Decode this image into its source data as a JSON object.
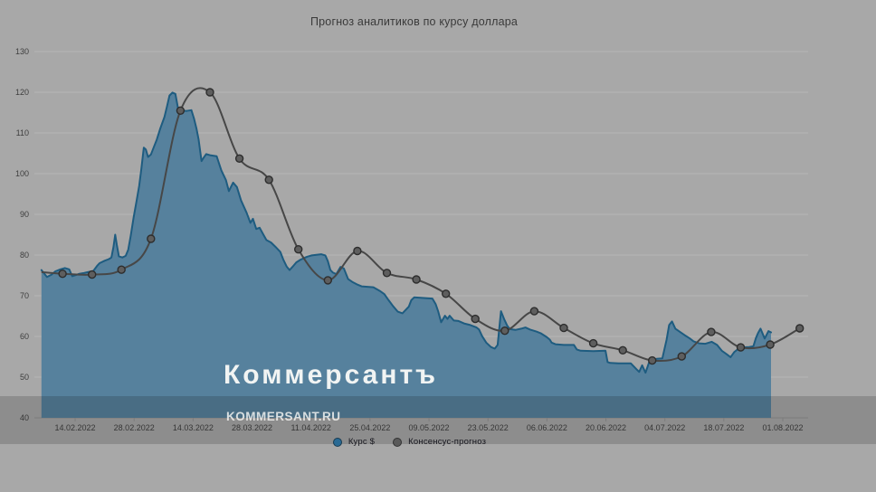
{
  "title": "Прогноз аналитиков по курсу доллара",
  "watermark": {
    "main": "Коммерсантъ",
    "sub": "KOMMERSANT.RU"
  },
  "legend": {
    "items": [
      {
        "label": "Курс $",
        "color": "#2a6a94"
      },
      {
        "label": "Консенсус-прогноз",
        "color": "#5a5a5a"
      }
    ]
  },
  "colors": {
    "background": "#a8a8a8",
    "dark_band": "rgba(15,15,15,0.175)",
    "watermark": "#faf8f6"
  },
  "chart_data": {
    "type": "area",
    "title": "Прогноз аналитиков по курсу доллара",
    "x_unit": "day index, 0 ≈ 06.02.2022, 1 unit = 1 day",
    "xlim": [
      0,
      182
    ],
    "ylim": [
      40,
      130
    ],
    "grid": true,
    "legend_position": "bottom",
    "grid_color": "#b6b6b6",
    "axis_line_color": "#949494",
    "tick_text_color": "#3e3e3e",
    "y_ticks": [
      130,
      120,
      110,
      100,
      90,
      80,
      70,
      60,
      50,
      40
    ],
    "x_tick_labels": [
      {
        "d": 8,
        "label": "14.02.2022"
      },
      {
        "d": 22,
        "label": "28.02.2022"
      },
      {
        "d": 36,
        "label": "14.03.2022"
      },
      {
        "d": 50,
        "label": "28.03.2022"
      },
      {
        "d": 64,
        "label": "11.04.2022"
      },
      {
        "d": 78,
        "label": "25.04.2022"
      },
      {
        "d": 92,
        "label": "09.05.2022"
      },
      {
        "d": 106,
        "label": "23.05.2022"
      },
      {
        "d": 120,
        "label": "06.06.2022"
      },
      {
        "d": 134,
        "label": "20.06.2022"
      },
      {
        "d": 148,
        "label": "04.07.2022"
      },
      {
        "d": 162,
        "label": "18.07.2022"
      },
      {
        "d": 176,
        "label": "01.08.2022"
      }
    ],
    "series": [
      {
        "name": "Курс $",
        "type": "area",
        "line_color": "#1e5c80",
        "fill_color": "#56819d",
        "points": [
          [
            0,
            76.3
          ],
          [
            1.3,
            74.6
          ],
          [
            2.4,
            75.2
          ],
          [
            3.3,
            76.0
          ],
          [
            4.5,
            76.5
          ],
          [
            5.6,
            76.8
          ],
          [
            6.6,
            76.5
          ],
          [
            7.3,
            74.8
          ],
          [
            8.2,
            75.1
          ],
          [
            9,
            75.4
          ],
          [
            10.1,
            75.6
          ],
          [
            11,
            75.8
          ],
          [
            12.3,
            76.1
          ],
          [
            13.2,
            77.3
          ],
          [
            13.8,
            78.0
          ],
          [
            15,
            78.6
          ],
          [
            16,
            79.0
          ],
          [
            16.6,
            79.4
          ],
          [
            17.1,
            82.0
          ],
          [
            17.5,
            85.0
          ],
          [
            17.9,
            82.5
          ],
          [
            18.4,
            79.7
          ],
          [
            19.2,
            79.4
          ],
          [
            20,
            79.8
          ],
          [
            20.6,
            81.3
          ],
          [
            21.2,
            84.8
          ],
          [
            21.9,
            89.3
          ],
          [
            22.6,
            93.4
          ],
          [
            23.2,
            97.0
          ],
          [
            23.7,
            101.0
          ],
          [
            24.3,
            106.4
          ],
          [
            24.8,
            105.9
          ],
          [
            25.3,
            104.1
          ],
          [
            26,
            104.7
          ],
          [
            26.7,
            106.6
          ],
          [
            27.4,
            108.4
          ],
          [
            28.2,
            111.1
          ],
          [
            29.2,
            113.9
          ],
          [
            29.8,
            116.5
          ],
          [
            30.4,
            119.2
          ],
          [
            31.1,
            119.9
          ],
          [
            31.8,
            119.6
          ],
          [
            32.4,
            116.2
          ],
          [
            33,
            115.6
          ],
          [
            34.4,
            115.4
          ],
          [
            35.6,
            115.6
          ],
          [
            36.2,
            113.6
          ],
          [
            36.8,
            111.1
          ],
          [
            37.3,
            108.5
          ],
          [
            38,
            103.1
          ],
          [
            38.5,
            103.9
          ],
          [
            39.1,
            104.8
          ],
          [
            40.2,
            104.5
          ],
          [
            41.6,
            104.3
          ],
          [
            42.7,
            100.8
          ],
          [
            43.8,
            98.4
          ],
          [
            44.5,
            95.7
          ],
          [
            45.5,
            97.8
          ],
          [
            46.4,
            96.7
          ],
          [
            47.4,
            93.4
          ],
          [
            48.7,
            90.4
          ],
          [
            49.6,
            87.9
          ],
          [
            50.2,
            88.9
          ],
          [
            51,
            86.4
          ],
          [
            51.8,
            86.7
          ],
          [
            52.6,
            85.2
          ],
          [
            53.4,
            83.7
          ],
          [
            54.5,
            83.1
          ],
          [
            55.5,
            82.1
          ],
          [
            56.7,
            80.8
          ],
          [
            57.4,
            78.9
          ],
          [
            58.2,
            77.2
          ],
          [
            58.9,
            76.3
          ],
          [
            59.6,
            77.1
          ],
          [
            60.5,
            78.2
          ],
          [
            61.6,
            78.9
          ],
          [
            63.1,
            79.6
          ],
          [
            64.2,
            79.9
          ],
          [
            65.5,
            80.1
          ],
          [
            66.4,
            80.2
          ],
          [
            67.4,
            79.9
          ],
          [
            68,
            78.5
          ],
          [
            68.6,
            76.3
          ],
          [
            69.2,
            75.7
          ],
          [
            70,
            75.3
          ],
          [
            71,
            77.1
          ],
          [
            71.8,
            76.7
          ],
          [
            72.8,
            74.1
          ],
          [
            73.8,
            73.4
          ],
          [
            74.9,
            72.8
          ],
          [
            76,
            72.3
          ],
          [
            78.8,
            72.1
          ],
          [
            80.3,
            71.2
          ],
          [
            81.4,
            70.4
          ],
          [
            82.4,
            68.9
          ],
          [
            83.5,
            67.4
          ],
          [
            84.6,
            66.1
          ],
          [
            85.7,
            65.7
          ],
          [
            87.2,
            67.3
          ],
          [
            87.8,
            68.9
          ],
          [
            88.5,
            69.6
          ],
          [
            90,
            69.5
          ],
          [
            91.5,
            69.4
          ],
          [
            92.8,
            69.3
          ],
          [
            93.6,
            67.9
          ],
          [
            94.2,
            66.1
          ],
          [
            94.9,
            63.5
          ],
          [
            95.8,
            65.1
          ],
          [
            96.4,
            64.3
          ],
          [
            96.9,
            65.1
          ],
          [
            97.9,
            63.9
          ],
          [
            99,
            63.8
          ],
          [
            100.3,
            63.2
          ],
          [
            101.8,
            62.8
          ],
          [
            103.3,
            62.2
          ],
          [
            103.9,
            61.7
          ],
          [
            104.6,
            60.1
          ],
          [
            105.6,
            58.5
          ],
          [
            106.7,
            57.4
          ],
          [
            107.6,
            57.0
          ],
          [
            108.3,
            57.9
          ],
          [
            109.1,
            66.2
          ],
          [
            109.9,
            64.1
          ],
          [
            110.6,
            62.6
          ],
          [
            111.2,
            61.8
          ],
          [
            112.5,
            61.6
          ],
          [
            113.9,
            61.9
          ],
          [
            114.9,
            62.2
          ],
          [
            116,
            61.7
          ],
          [
            117.5,
            61.2
          ],
          [
            118.5,
            60.8
          ],
          [
            120,
            59.8
          ],
          [
            120.7,
            59.2
          ],
          [
            121.1,
            58.5
          ],
          [
            122,
            58.1
          ],
          [
            124,
            57.9
          ],
          [
            126.4,
            57.9
          ],
          [
            127.1,
            56.8
          ],
          [
            128,
            56.5
          ],
          [
            131,
            56.4
          ],
          [
            133.9,
            56.5
          ],
          [
            134.4,
            53.7
          ],
          [
            135,
            53.5
          ],
          [
            137,
            53.4
          ],
          [
            139.9,
            53.4
          ],
          [
            141.3,
            51.9
          ],
          [
            141.9,
            51.3
          ],
          [
            142.6,
            52.9
          ],
          [
            143.4,
            51.1
          ],
          [
            144.3,
            53.8
          ],
          [
            145.1,
            54.3
          ],
          [
            146,
            54.5
          ],
          [
            147.4,
            54.6
          ],
          [
            148.4,
            59.2
          ],
          [
            149,
            62.8
          ],
          [
            149.7,
            63.7
          ],
          [
            150.5,
            61.9
          ],
          [
            151.6,
            61.1
          ],
          [
            152.7,
            60.3
          ],
          [
            153.8,
            59.6
          ],
          [
            154.8,
            58.8
          ],
          [
            156.1,
            58.3
          ],
          [
            157.6,
            58.2
          ],
          [
            159.1,
            58.7
          ],
          [
            160.4,
            57.9
          ],
          [
            161.5,
            56.5
          ],
          [
            162.6,
            55.7
          ],
          [
            163.6,
            54.9
          ],
          [
            164.5,
            56.2
          ],
          [
            165.6,
            57.1
          ],
          [
            166.5,
            57.3
          ],
          [
            168,
            57.4
          ],
          [
            169,
            57.6
          ],
          [
            169.6,
            59.6
          ],
          [
            170.1,
            60.8
          ],
          [
            170.7,
            61.9
          ],
          [
            171.7,
            59.5
          ],
          [
            172.6,
            61.3
          ],
          [
            173.2,
            61.0
          ]
        ]
      },
      {
        "name": "Консенсус-прогноз",
        "type": "line",
        "line_color": "#474747",
        "marker_fill": "#5e5e5e",
        "marker_stroke": "#2d2d2d",
        "line_start": [
          0,
          75.8
        ],
        "points": [
          [
            5,
            75.4
          ],
          [
            12,
            75.2
          ],
          [
            19,
            76.4
          ],
          [
            26,
            84.0
          ],
          [
            33,
            115.5
          ],
          [
            40,
            120.0
          ],
          [
            47,
            103.7
          ],
          [
            54,
            98.5
          ],
          [
            61,
            81.4
          ],
          [
            68,
            73.8
          ],
          [
            75,
            81.0
          ],
          [
            82,
            75.6
          ],
          [
            89,
            74.0
          ],
          [
            96,
            70.5
          ],
          [
            103,
            64.3
          ],
          [
            110,
            61.4
          ],
          [
            117,
            66.2
          ],
          [
            124,
            62.1
          ],
          [
            131,
            58.3
          ],
          [
            138,
            56.6
          ],
          [
            145,
            54.1
          ],
          [
            152,
            55.1
          ],
          [
            159,
            61.1
          ],
          [
            166,
            57.3
          ],
          [
            173,
            58.0
          ],
          [
            180,
            62.0
          ]
        ]
      }
    ]
  }
}
